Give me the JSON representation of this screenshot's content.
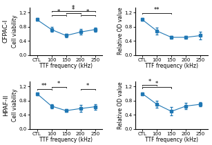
{
  "chart_data": [
    {
      "type": "line",
      "title": "CFPAC-I",
      "x_label": "TTF frequency (kHz)",
      "y_label": "Cell viability",
      "categories": [
        "CTL",
        "100",
        "150",
        "200",
        "250"
      ],
      "values": [
        1.0,
        0.72,
        0.55,
        0.65,
        0.72
      ],
      "errors": [
        0.04,
        0.07,
        0.04,
        0.08,
        0.06
      ],
      "marker": "square",
      "line_style": "solid",
      "ylim": [
        0,
        1.35
      ],
      "yticks": [
        {
          "value": 0,
          "label": "0.0"
        },
        0.4,
        0.8,
        1.2
      ],
      "annotations": [
        {
          "text": "*",
          "from": "100",
          "to": "150",
          "y": 1.13
        },
        {
          "text": "*",
          "from": "150",
          "to": "200",
          "y": 1.19
        },
        {
          "text": "*",
          "from": "200",
          "to": "250",
          "y": 1.13
        },
        {
          "text": "*",
          "from": "100",
          "to": "250",
          "y": 1.25
        }
      ]
    },
    {
      "type": "line",
      "x_label": "TTF frequency (kHz)",
      "y_label": "Relative OD value",
      "categories": [
        "CTL",
        "100",
        "150",
        "200",
        "250"
      ],
      "values": [
        1.0,
        0.68,
        0.5,
        0.5,
        0.55
      ],
      "errors": [
        0.04,
        0.1,
        0.04,
        0.04,
        0.1
      ],
      "marker": "square",
      "line_style": "solid",
      "ylim": [
        0,
        1.35
      ],
      "yticks": [
        {
          "value": 0,
          "label": "0.0"
        },
        0.4,
        0.8,
        1.2
      ],
      "annotations": [
        {
          "text": "**",
          "from": "CTL",
          "to": "150",
          "y": 1.18
        }
      ]
    },
    {
      "type": "line",
      "title": "HPAF-II",
      "x_label": "TTF frequency (kHz)",
      "y_label": "Cell viability",
      "categories": [
        "CTL",
        "100",
        "150",
        "200",
        "250"
      ],
      "values": [
        1.0,
        0.65,
        0.52,
        0.58,
        0.63
      ],
      "errors": [
        0.04,
        0.06,
        0.04,
        0.1,
        0.08
      ],
      "marker": "square",
      "line_style": "solid",
      "ylim": [
        0,
        1.35
      ],
      "yticks": [
        {
          "value": 0,
          "label": "0.0"
        },
        0.4,
        0.8,
        1.2
      ],
      "annotations": [
        {
          "text": "**",
          "from": "CTL",
          "to": "100",
          "y": 1.13
        },
        {
          "text": "*",
          "from": "100",
          "to": "150",
          "y": 1.19
        },
        {
          "text": "*",
          "from": "200",
          "to": "250",
          "y": 1.13
        }
      ]
    },
    {
      "type": "line",
      "x_label": "TTF frequency (kHz)",
      "y_label": "Relative OD value",
      "categories": [
        "CTL",
        "100",
        "150",
        "200",
        "250"
      ],
      "values": [
        1.0,
        0.7,
        0.5,
        0.65,
        0.7
      ],
      "errors": [
        0.04,
        0.1,
        0.12,
        0.08,
        0.06
      ],
      "marker": "square",
      "line_style": "solid",
      "ylim": [
        0,
        1.35
      ],
      "yticks": [
        {
          "value": 0,
          "label": "0.0"
        },
        0.4,
        0.8,
        1.2
      ],
      "annotations": [
        {
          "text": "*",
          "from": "CTL",
          "to": "100",
          "y": 1.25
        },
        {
          "text": "*",
          "from": "CTL",
          "to": "150",
          "y": 1.18
        }
      ]
    }
  ]
}
